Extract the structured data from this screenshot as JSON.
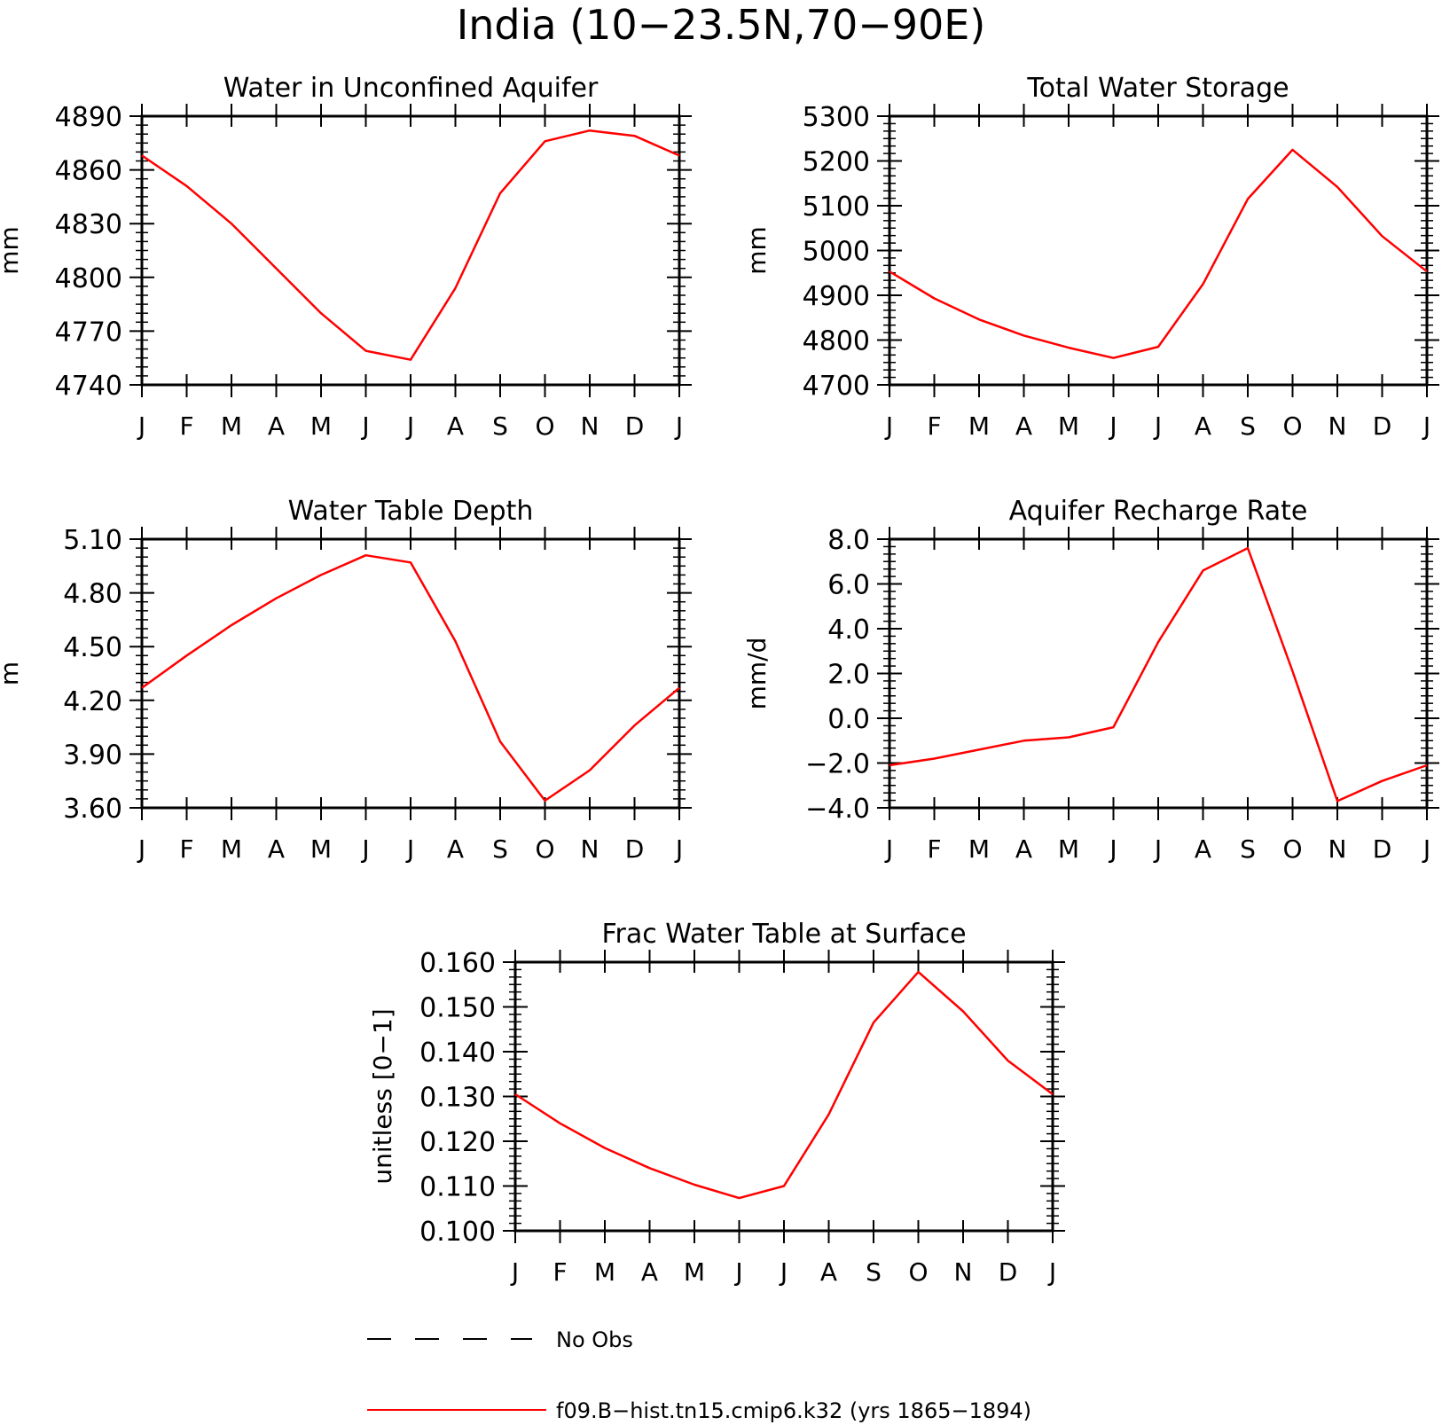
{
  "page_title": "India (10−23.5N,70−90E)",
  "colors": {
    "series": "#ff0000",
    "axes": "#000000",
    "background": "#ffffff"
  },
  "legend": [
    {
      "label": "No Obs",
      "style": "dashed",
      "color": "#000000"
    },
    {
      "label": "f09.B−hist.tn15.cmip6.k32 (yrs 1865−1894)",
      "style": "solid",
      "color": "#ff0000"
    }
  ],
  "chart_data": [
    {
      "type": "line",
      "title": "Water in Unconfined Aquifer",
      "ylabel": "mm",
      "xlabel": "",
      "categories": [
        "J",
        "F",
        "M",
        "A",
        "M",
        "J",
        "J",
        "A",
        "S",
        "O",
        "N",
        "D",
        "J"
      ],
      "yticks": [
        "4740",
        "4770",
        "4800",
        "4830",
        "4860",
        "4890"
      ],
      "ylim": [
        4740,
        4890
      ],
      "grid": false,
      "series": [
        {
          "values": [
            4868,
            4851,
            4830,
            4805,
            4780,
            4759,
            4754,
            4794,
            4847,
            4876,
            4882,
            4879,
            4868
          ]
        }
      ]
    },
    {
      "type": "line",
      "title": "Total Water Storage",
      "ylabel": "mm",
      "xlabel": "",
      "categories": [
        "J",
        "F",
        "M",
        "A",
        "M",
        "J",
        "J",
        "A",
        "S",
        "O",
        "N",
        "D",
        "J"
      ],
      "yticks": [
        "4700",
        "4800",
        "4900",
        "5000",
        "5100",
        "5200",
        "5300"
      ],
      "ylim": [
        4700,
        5300
      ],
      "grid": false,
      "series": [
        {
          "values": [
            4953,
            4893,
            4846,
            4810,
            4783,
            4760,
            4785,
            4925,
            5115,
            5225,
            5142,
            5032,
            4953
          ]
        }
      ]
    },
    {
      "type": "line",
      "title": "Water Table Depth",
      "ylabel": "m",
      "xlabel": "",
      "categories": [
        "J",
        "F",
        "M",
        "A",
        "M",
        "J",
        "J",
        "A",
        "S",
        "O",
        "N",
        "D",
        "J"
      ],
      "yticks": [
        "3.60",
        "3.90",
        "4.20",
        "4.50",
        "4.80",
        "5.10"
      ],
      "ylim": [
        3.6,
        5.1
      ],
      "grid": false,
      "series": [
        {
          "values": [
            4.27,
            4.45,
            4.62,
            4.77,
            4.9,
            5.01,
            4.97,
            4.53,
            3.97,
            3.64,
            3.81,
            4.06,
            4.27
          ]
        }
      ]
    },
    {
      "type": "line",
      "title": "Aquifer Recharge Rate",
      "ylabel": "mm/d",
      "xlabel": "",
      "categories": [
        "J",
        "F",
        "M",
        "A",
        "M",
        "J",
        "J",
        "A",
        "S",
        "O",
        "N",
        "D",
        "J"
      ],
      "yticks": [
        "−4.0",
        "−2.0",
        "0.0",
        "2.0",
        "4.0",
        "6.0",
        "8.0"
      ],
      "ylim": [
        -4,
        8
      ],
      "grid": false,
      "series": [
        {
          "values": [
            -2.1,
            -1.8,
            -1.4,
            -1.0,
            -0.85,
            -0.4,
            3.4,
            6.6,
            7.6,
            2.1,
            -3.7,
            -2.8,
            -2.1
          ]
        }
      ]
    },
    {
      "type": "line",
      "title": "Frac Water Table at Surface",
      "ylabel": "unitless [0−1]",
      "xlabel": "",
      "categories": [
        "J",
        "F",
        "M",
        "A",
        "M",
        "J",
        "J",
        "A",
        "S",
        "O",
        "N",
        "D",
        "J"
      ],
      "yticks": [
        "0.100",
        "0.110",
        "0.120",
        "0.130",
        "0.140",
        "0.150",
        "0.160"
      ],
      "ylim": [
        0.1,
        0.16
      ],
      "grid": false,
      "series": [
        {
          "values": [
            0.1305,
            0.124,
            0.1185,
            0.114,
            0.1103,
            0.1073,
            0.11,
            0.126,
            0.1465,
            0.1578,
            0.149,
            0.138,
            0.1305
          ]
        }
      ]
    }
  ]
}
